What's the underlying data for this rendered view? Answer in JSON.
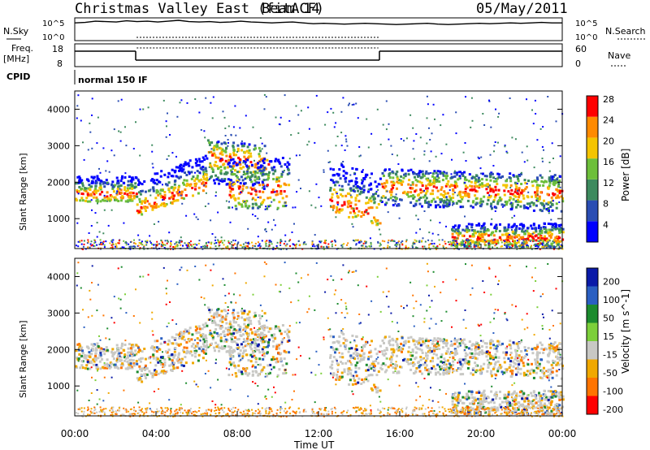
{
  "header": {
    "title": "Christmas Valley East (fitACF)",
    "beam": "Beam 14",
    "date": "05/May/2011"
  },
  "chart_data": [
    {
      "type": "line",
      "panel": "noise",
      "left_label": "N.Sky",
      "right_label": "N.Search",
      "left_ticks": [
        "10^5",
        "10^0"
      ],
      "right_ticks": [
        "10^5",
        "10^0"
      ],
      "sky_profile": [
        4.2,
        4.3,
        4.6,
        4.5,
        4.4,
        4.7,
        4.5,
        4.6,
        4.4,
        4.6,
        4.8,
        4.5,
        4.4,
        4.5,
        4.3,
        4.4,
        4.6,
        4.4,
        4.3,
        4.2,
        4.3,
        4.4,
        4.2,
        4.0,
        4.1,
        4.0,
        3.9,
        4.0,
        4.1,
        4.0,
        3.9,
        3.8,
        3.9,
        4.0,
        4.1,
        3.9,
        3.8,
        3.9,
        4.0,
        4.1,
        4.0,
        4.1,
        4.2,
        4.1,
        4.2,
        4.3,
        4.2,
        4.2
      ]
    },
    {
      "type": "line",
      "panel": "frequency",
      "left_label": "Freq.\n[MHz]",
      "right_label": "Nave",
      "left_ticks": [
        "18",
        "8"
      ],
      "right_ticks": [
        "60",
        "0"
      ],
      "freq_segments": [
        {
          "start_hour": 0,
          "end_hour": 3,
          "level": "high"
        },
        {
          "start_hour": 3,
          "end_hour": 15,
          "level": "low"
        },
        {
          "start_hour": 15,
          "end_hour": 24,
          "level": "high"
        }
      ]
    },
    {
      "type": "heatmap",
      "panel": "cpid",
      "left_label": "CPID",
      "mode_text": "normal 150 IF"
    },
    {
      "type": "heatmap",
      "panel": "power",
      "ylabel": "Slant Range [km]",
      "y_ticks": [
        1000,
        2000,
        3000,
        4000
      ],
      "ylim": [
        180,
        4500
      ],
      "colorbar_label": "Power [dB]",
      "colorbar_ticks": [
        4,
        8,
        12,
        16,
        20,
        24,
        28
      ],
      "colorbar_colors": [
        "#0000ff",
        "#2a4db3",
        "#3d8a5e",
        "#6dbf3a",
        "#f4c400",
        "#ff8a00",
        "#ff0000"
      ]
    },
    {
      "type": "heatmap",
      "panel": "velocity",
      "ylabel": "Slant Range [km]",
      "y_ticks": [
        1000,
        2000,
        3000,
        4000
      ],
      "ylim": [
        180,
        4500
      ],
      "colorbar_label": "Velocity [m s^-1]",
      "colorbar_ticks": [
        "200",
        "100",
        "50",
        "15",
        "-15",
        "-50",
        "-100",
        "-200"
      ],
      "colorbar_colors": [
        "#0a1aa8",
        "#2a5fc2",
        "#1c8b2e",
        "#7ccf3a",
        "#c8c8c4",
        "#f0a800",
        "#ff7400",
        "#ff0000"
      ]
    }
  ],
  "x_axis": {
    "xlabel": "Time UT",
    "ticks": [
      "00:00",
      "04:00",
      "08:00",
      "12:00",
      "16:00",
      "20:00",
      "00:00"
    ]
  },
  "scatter_bands": [
    {
      "t0": 0.0,
      "t1": 3.0,
      "r0": 1500,
      "r1": 2200,
      "core": 1700,
      "slope": 0
    },
    {
      "t0": 3.0,
      "t1": 6.5,
      "r0": 1100,
      "r1": 2100,
      "core": 1300,
      "slope": 200
    },
    {
      "t0": 6.5,
      "t1": 9.5,
      "r0": 2000,
      "r1": 3200,
      "core": 2700,
      "slope": -60
    },
    {
      "t0": 7.5,
      "t1": 10.5,
      "r0": 1300,
      "r1": 2700,
      "core": 1800,
      "slope": 0
    },
    {
      "t0": 12.5,
      "t1": 15.0,
      "r0": 1200,
      "r1": 2600,
      "core": 1500,
      "slope": -150
    },
    {
      "t0": 15.0,
      "t1": 24.0,
      "r0": 1400,
      "r1": 2400,
      "core": 1900,
      "slope": -20
    },
    {
      "t0": 18.5,
      "t1": 24.0,
      "r0": 250,
      "r1": 900,
      "core": 500,
      "slope": 0
    }
  ]
}
